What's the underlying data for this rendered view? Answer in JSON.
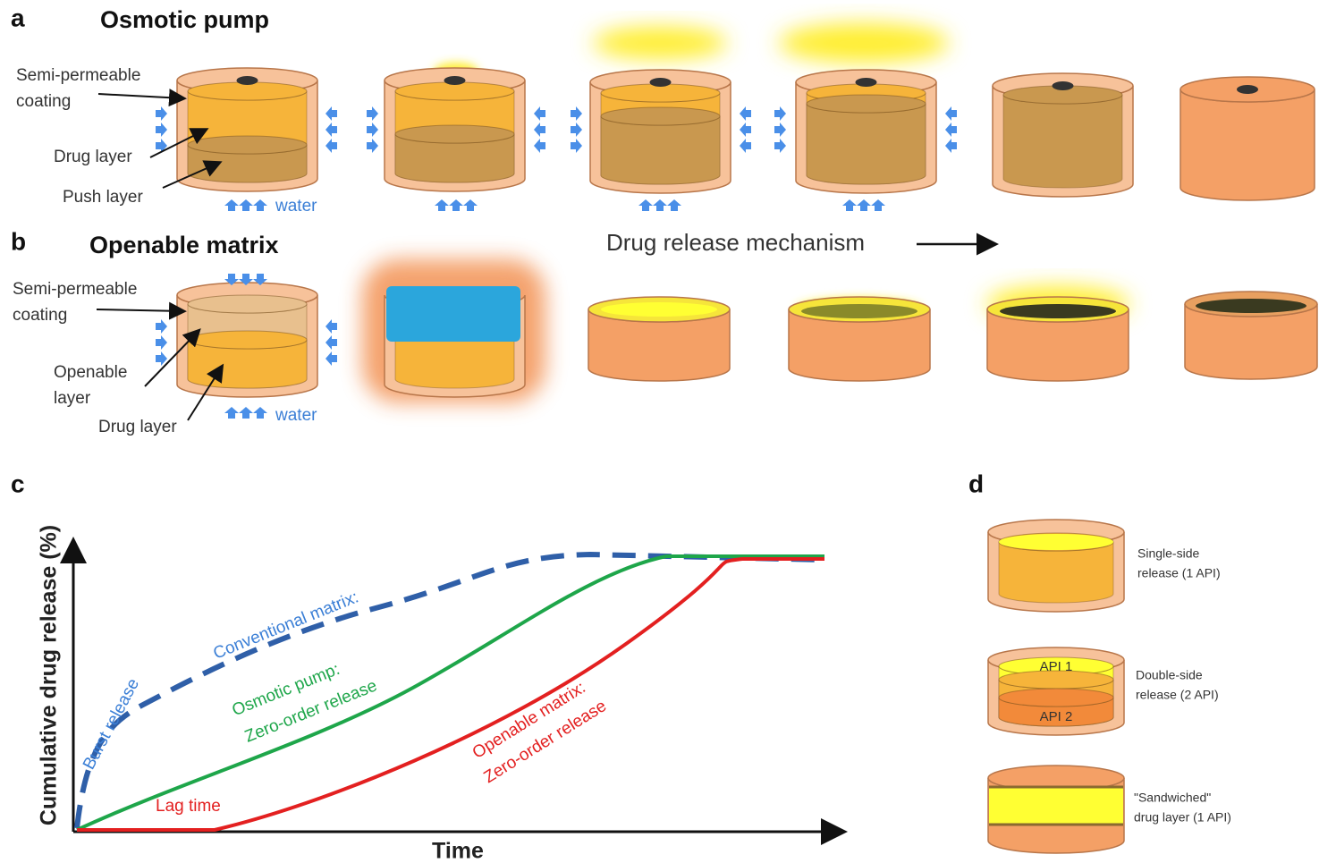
{
  "panels": {
    "a": {
      "label": "a",
      "title": "Osmotic pump",
      "annotations": {
        "coating": [
          "Semi-permeable",
          "coating"
        ],
        "drug_layer": "Drug layer",
        "push_layer": "Push layer",
        "water": "water"
      }
    },
    "b": {
      "label": "b",
      "title": "Openable matrix",
      "mechanism": "Drug release mechanism",
      "annotations": {
        "coating": [
          "Semi-permeable",
          "coating"
        ],
        "openable_layer": [
          "Openable",
          "layer"
        ],
        "drug_layer": "Drug layer",
        "water": "water"
      }
    },
    "c": {
      "label": "c",
      "y_axis": "Cumulative drug release (%)",
      "x_axis": "Time",
      "curve_labels": {
        "burst": "Burst release",
        "conventional": "Conventional matrix:",
        "osmotic": [
          "Osmotic pump:",
          "Zero-order release"
        ],
        "openable": [
          "Openable matrix:",
          "Zero-order release"
        ],
        "lag": "Lag time"
      }
    },
    "d": {
      "label": "d",
      "items": [
        {
          "caption": [
            "Single-side",
            "release (1 API)"
          ]
        },
        {
          "caption": [
            "Double-side",
            "release (2 API)"
          ],
          "layers": [
            "API 1",
            "API 2"
          ]
        },
        {
          "caption": [
            "\"Sandwiched\"",
            "drug layer (1 API)"
          ]
        }
      ]
    }
  }
}
